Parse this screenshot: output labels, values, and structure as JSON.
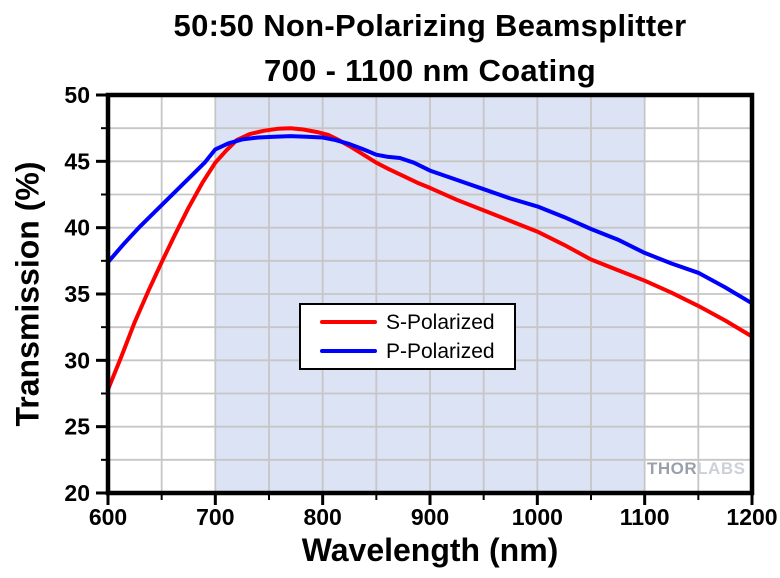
{
  "title": {
    "line1": "50:50 Non-Polarizing Beamsplitter",
    "line2": "700 - 1100 nm Coating"
  },
  "watermark": {
    "part1": "THOR",
    "part2": "LABS"
  },
  "colors": {
    "s_polarized": "#ff0000",
    "p_polarized": "#0000ff",
    "coating_band": "#dce3f4",
    "grid": "#c6c6c6",
    "axis": "#000000"
  },
  "chart_data": {
    "type": "line",
    "title": "50:50 Non-Polarizing Beamsplitter 700 - 1100 nm Coating",
    "xlabel": "Wavelength (nm)",
    "ylabel": "Transmission (%)",
    "xlim": [
      600,
      1200
    ],
    "ylim": [
      20,
      50
    ],
    "x_major_ticks": [
      600,
      700,
      800,
      900,
      1000,
      1100,
      1200
    ],
    "y_major_ticks": [
      20,
      25,
      30,
      35,
      40,
      45,
      50
    ],
    "x_minor_ticks": [
      650,
      750,
      850,
      950,
      1050,
      1150
    ],
    "y_minor_ticks": [
      22.5,
      27.5,
      32.5,
      37.5,
      42.5,
      47.5
    ],
    "grid": true,
    "legend_position": "center",
    "shaded_region_nm": [
      700,
      1100
    ],
    "series": [
      {
        "name": "S-Polarized",
        "color": "#ff0000",
        "points": [
          [
            600,
            27.8
          ],
          [
            612,
            30.2
          ],
          [
            625,
            32.9
          ],
          [
            638,
            35.3
          ],
          [
            650,
            37.4
          ],
          [
            662,
            39.4
          ],
          [
            675,
            41.5
          ],
          [
            688,
            43.4
          ],
          [
            700,
            44.9
          ],
          [
            710,
            45.8
          ],
          [
            720,
            46.6
          ],
          [
            732,
            47.05
          ],
          [
            745,
            47.3
          ],
          [
            758,
            47.45
          ],
          [
            770,
            47.5
          ],
          [
            782,
            47.4
          ],
          [
            795,
            47.2
          ],
          [
            805,
            47.0
          ],
          [
            815,
            46.6
          ],
          [
            825,
            46.15
          ],
          [
            838,
            45.5
          ],
          [
            850,
            44.9
          ],
          [
            862,
            44.4
          ],
          [
            875,
            43.9
          ],
          [
            888,
            43.4
          ],
          [
            900,
            43.0
          ],
          [
            925,
            42.1
          ],
          [
            950,
            41.3
          ],
          [
            975,
            40.5
          ],
          [
            1000,
            39.7
          ],
          [
            1025,
            38.7
          ],
          [
            1050,
            37.6
          ],
          [
            1075,
            36.8
          ],
          [
            1100,
            36.0
          ],
          [
            1125,
            35.1
          ],
          [
            1150,
            34.1
          ],
          [
            1175,
            33.0
          ],
          [
            1200,
            31.8
          ]
        ]
      },
      {
        "name": "P-Polarized",
        "color": "#0000ff",
        "points": [
          [
            600,
            37.4
          ],
          [
            615,
            38.8
          ],
          [
            630,
            40.1
          ],
          [
            650,
            41.7
          ],
          [
            665,
            42.9
          ],
          [
            680,
            44.1
          ],
          [
            690,
            44.9
          ],
          [
            700,
            45.9
          ],
          [
            712,
            46.35
          ],
          [
            725,
            46.65
          ],
          [
            740,
            46.8
          ],
          [
            755,
            46.85
          ],
          [
            770,
            46.9
          ],
          [
            785,
            46.85
          ],
          [
            800,
            46.8
          ],
          [
            812,
            46.6
          ],
          [
            825,
            46.3
          ],
          [
            838,
            45.9
          ],
          [
            850,
            45.5
          ],
          [
            860,
            45.35
          ],
          [
            872,
            45.25
          ],
          [
            885,
            44.9
          ],
          [
            900,
            44.3
          ],
          [
            925,
            43.6
          ],
          [
            950,
            42.9
          ],
          [
            975,
            42.2
          ],
          [
            1000,
            41.6
          ],
          [
            1025,
            40.8
          ],
          [
            1050,
            39.9
          ],
          [
            1075,
            39.1
          ],
          [
            1100,
            38.1
          ],
          [
            1125,
            37.3
          ],
          [
            1150,
            36.6
          ],
          [
            1175,
            35.5
          ],
          [
            1200,
            34.3
          ]
        ]
      }
    ]
  }
}
